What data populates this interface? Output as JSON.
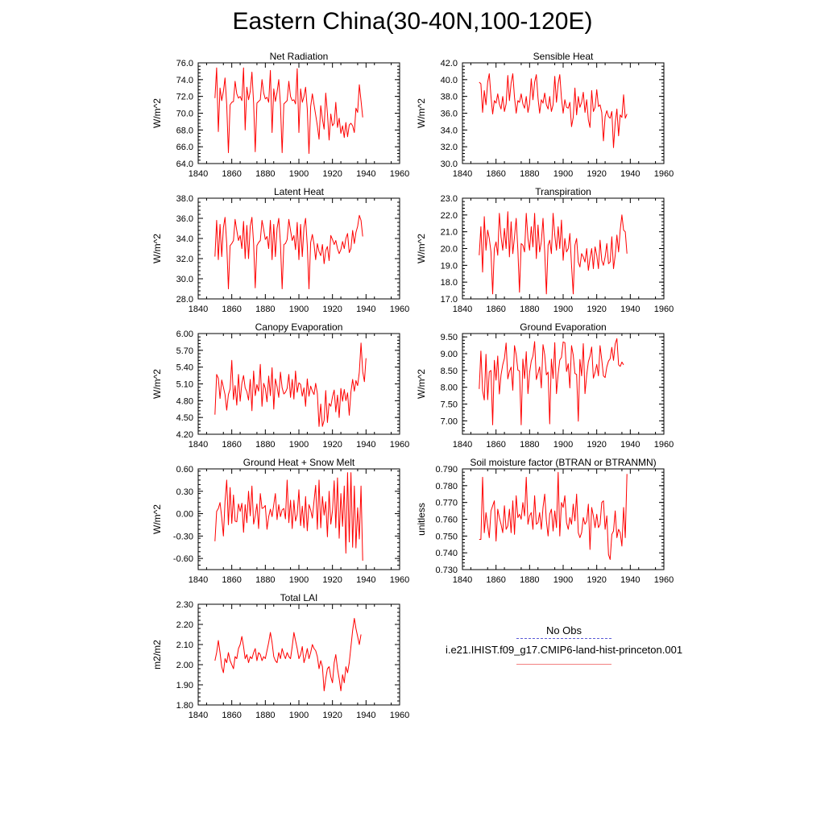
{
  "page": {
    "title": "Eastern China(30-40N,100-120E)"
  },
  "legend": {
    "obs_label": "No Obs",
    "model_label": "i.e21.IHIST.f09_g17.CMIP6-land-hist-princeton.001",
    "obs_color": "#5a5ad6",
    "model_color": "#f28080"
  },
  "colors": {
    "series": "#ff0000",
    "axes": "#000000"
  },
  "chart_data": [
    {
      "type": "line",
      "title": "Net Radiation",
      "ylabel": "W/m^2",
      "xlim": [
        1840,
        1960
      ],
      "ylim": [
        64,
        76
      ],
      "xticks": [
        "1840",
        "1860",
        "1880",
        "1900",
        "1920",
        "1940",
        "1960"
      ],
      "yticks": [
        "64.0",
        "66.0",
        "68.0",
        "70.0",
        "72.0",
        "74.0",
        "76.0"
      ],
      "x_start": 1850,
      "series": [
        {
          "values": [
            71.8,
            75.4,
            67.8,
            73.0,
            71.5,
            72.6,
            74.2,
            71.0,
            65.3,
            71.0,
            71.3,
            71.4,
            73.8,
            72.3,
            71.8,
            72.0,
            71.5,
            75.4,
            68.0,
            73.1,
            71.6,
            72.6,
            74.9,
            71.2,
            65.4,
            71.2,
            71.4,
            71.6,
            74.0,
            72.4,
            71.7,
            71.9,
            71.3,
            75.1,
            67.7,
            72.9,
            71.4,
            72.5,
            74.0,
            71.0,
            65.3,
            71.1,
            71.3,
            71.5,
            73.8,
            72.0,
            71.5,
            71.6,
            71.1,
            75.3,
            67.7,
            72.9,
            71.3,
            72.0,
            73.1,
            70.5,
            65.2,
            70.8,
            72.3,
            71.0,
            69.8,
            68.5,
            66.9,
            70.9,
            69.3,
            68.1,
            72.4,
            70.0,
            66.8,
            69.9,
            68.5,
            68.8,
            71.3,
            68.3,
            69.4,
            67.6,
            68.5,
            67.1,
            68.9,
            67.2,
            68.6,
            68.8,
            68.5,
            67.7,
            70.6,
            70.1,
            73.4,
            71.5,
            69.5
          ]
        }
      ]
    },
    {
      "type": "line",
      "title": "Sensible Heat",
      "ylabel": "W/m^2",
      "xlim": [
        1840,
        1960
      ],
      "ylim": [
        30,
        42
      ],
      "xticks": [
        "1840",
        "1860",
        "1880",
        "1900",
        "1920",
        "1940",
        "1960"
      ],
      "yticks": [
        "30.0",
        "32.0",
        "34.0",
        "36.0",
        "38.0",
        "40.0",
        "42.0"
      ],
      "x_start": 1850,
      "series": [
        {
          "values": [
            39.7,
            39.5,
            36.1,
            38.7,
            37.0,
            39.7,
            40.7,
            38.0,
            35.9,
            37.5,
            37.2,
            38.3,
            37.1,
            36.5,
            38.0,
            36.2,
            37.1,
            40.5,
            37.5,
            39.6,
            40.7,
            37.9,
            36.0,
            37.5,
            37.3,
            38.3,
            37.1,
            36.6,
            38.0,
            36.1,
            37.1,
            40.1,
            37.6,
            39.7,
            40.6,
            37.8,
            36.0,
            37.6,
            37.2,
            38.4,
            37.0,
            36.5,
            38.0,
            36.2,
            37.0,
            40.4,
            37.3,
            39.5,
            40.6,
            37.8,
            36.0,
            37.6,
            36.7,
            36.6,
            37.3,
            34.4,
            35.5,
            39.0,
            35.8,
            38.0,
            36.7,
            37.3,
            38.5,
            36.1,
            37.6,
            35.2,
            34.3,
            38.7,
            36.2,
            36.7,
            38.8,
            36.8,
            37.0,
            36.1,
            32.7,
            35.6,
            36.3,
            35.6,
            35.4,
            36.2,
            31.9,
            34.9,
            36.5,
            33.3,
            35.8,
            35.5,
            38.2,
            35.4,
            35.9
          ]
        }
      ]
    },
    {
      "type": "line",
      "title": "Latent Heat",
      "ylabel": "W/m^2",
      "xlim": [
        1840,
        1960
      ],
      "ylim": [
        28,
        38
      ],
      "xticks": [
        "1840",
        "1860",
        "1880",
        "1900",
        "1920",
        "1940",
        "1960"
      ],
      "yticks": [
        "28.0",
        "30.0",
        "32.0",
        "34.0",
        "36.0",
        "38.0"
      ],
      "x_start": 1850,
      "series": [
        {
          "values": [
            32.2,
            35.8,
            31.9,
            35.4,
            32.2,
            35.1,
            36.1,
            33.5,
            29.0,
            33.3,
            33.5,
            33.8,
            35.9,
            34.8,
            33.8,
            34.3,
            33.0,
            35.7,
            32.0,
            35.3,
            32.0,
            35.2,
            36.1,
            33.5,
            29.1,
            33.3,
            33.6,
            33.8,
            35.8,
            34.9,
            33.9,
            34.2,
            33.0,
            35.8,
            31.9,
            35.4,
            32.2,
            35.0,
            36.0,
            33.5,
            29.0,
            33.4,
            33.5,
            33.9,
            35.9,
            34.8,
            33.8,
            34.3,
            32.9,
            35.6,
            31.9,
            35.4,
            32.2,
            35.1,
            36.0,
            33.3,
            29.0,
            33.6,
            34.4,
            33.4,
            31.9,
            33.5,
            32.7,
            32.3,
            33.4,
            31.5,
            32.8,
            33.2,
            31.8,
            34.3,
            33.9,
            33.4,
            33.8,
            33.0,
            32.5,
            32.9,
            33.7,
            33.0,
            34.0,
            34.5,
            32.6,
            33.0,
            34.8,
            33.5,
            34.6,
            35.2,
            36.3,
            35.8,
            34.2
          ]
        }
      ]
    },
    {
      "type": "line",
      "title": "Transpiration",
      "ylabel": "W/m^2",
      "xlim": [
        1840,
        1960
      ],
      "ylim": [
        17,
        23
      ],
      "xticks": [
        "1840",
        "1860",
        "1880",
        "1900",
        "1920",
        "1940",
        "1960"
      ],
      "yticks": [
        "17.0",
        "18.0",
        "19.0",
        "20.0",
        "21.0",
        "22.0",
        "23.0"
      ],
      "x_start": 1850,
      "series": [
        {
          "values": [
            19.6,
            21.3,
            18.6,
            21.9,
            19.9,
            21.1,
            20.6,
            19.8,
            17.3,
            20.0,
            20.4,
            19.6,
            22.1,
            20.7,
            19.9,
            21.2,
            20.0,
            22.2,
            19.5,
            21.6,
            19.7,
            20.7,
            21.8,
            19.9,
            17.4,
            20.3,
            20.2,
            19.8,
            22.1,
            20.6,
            19.9,
            21.3,
            20.1,
            22.1,
            19.4,
            21.4,
            19.8,
            20.4,
            21.8,
            19.8,
            17.3,
            20.2,
            20.5,
            19.7,
            22.1,
            20.8,
            19.9,
            21.3,
            20.0,
            21.7,
            19.3,
            20.6,
            19.8,
            20.0,
            20.9,
            19.0,
            17.3,
            20.2,
            20.6,
            19.2,
            18.9,
            19.7,
            19.5,
            19.2,
            20.0,
            18.7,
            19.4,
            20.0,
            18.8,
            20.1,
            19.6,
            18.8,
            20.5,
            19.3,
            19.0,
            19.5,
            20.3,
            19.1,
            19.2,
            20.7,
            18.8,
            19.6,
            20.8,
            19.8,
            21.1,
            22.0,
            21.1,
            21.0,
            19.7
          ]
        }
      ]
    },
    {
      "type": "line",
      "title": "Canopy Evaporation",
      "ylabel": "W/m^2",
      "xlim": [
        1840,
        1960
      ],
      "ylim": [
        4.2,
        6.0
      ],
      "xticks": [
        "1840",
        "1860",
        "1880",
        "1900",
        "1920",
        "1940",
        "1960"
      ],
      "yticks": [
        "4.20",
        "4.50",
        "4.80",
        "5.10",
        "5.40",
        "5.70",
        "6.00"
      ],
      "x_start": 1850,
      "series": [
        {
          "values": [
            4.55,
            5.27,
            5.2,
            4.84,
            5.17,
            5.04,
            4.91,
            4.63,
            4.91,
            5.01,
            5.52,
            4.82,
            5.07,
            4.72,
            5.27,
            4.79,
            5.11,
            5.25,
            5.03,
            4.96,
            4.81,
            5.18,
            4.62,
            5.33,
            4.89,
            5.09,
            4.97,
            5.45,
            4.7,
            5.11,
            5.02,
            4.78,
            5.24,
            4.89,
            5.39,
            4.65,
            5.19,
            5.05,
            4.86,
            5.31,
            5.03,
            4.92,
            4.95,
            5.02,
            5.27,
            4.86,
            5.18,
            4.83,
            5.33,
            4.95,
            5.12,
            5.09,
            4.88,
            5.03,
            4.7,
            5.19,
            4.88,
            5.06,
            4.97,
            4.91,
            5.11,
            4.93,
            4.34,
            4.74,
            4.34,
            4.45,
            4.98,
            4.41,
            4.75,
            4.7,
            4.87,
            4.99,
            4.6,
            4.9,
            4.5,
            5.02,
            4.79,
            5.0,
            4.8,
            4.94,
            4.54,
            4.96,
            5.18,
            4.97,
            5.16,
            5.07,
            5.31,
            5.83,
            5.32,
            5.14,
            5.56
          ]
        }
      ]
    },
    {
      "type": "line",
      "title": "Ground Evaporation",
      "ylabel": "W/m^2",
      "xlim": [
        1840,
        1960
      ],
      "ylim": [
        6.6,
        9.6
      ],
      "xticks": [
        "1840",
        "1860",
        "1880",
        "1900",
        "1920",
        "1940",
        "1960"
      ],
      "yticks": [
        "7.00",
        "7.50",
        "8.00",
        "8.50",
        "9.00",
        "9.50"
      ],
      "x_start": 1850,
      "series": [
        {
          "values": [
            7.95,
            9.08,
            7.9,
            7.62,
            8.98,
            7.63,
            8.46,
            8.5,
            6.88,
            8.8,
            8.21,
            8.93,
            7.8,
            8.37,
            8.67,
            8.86,
            9.32,
            8.25,
            8.47,
            8.6,
            7.91,
            9.24,
            8.97,
            8.51,
            8.49,
            6.88,
            8.84,
            8.26,
            9.06,
            7.81,
            8.43,
            8.78,
            8.93,
            9.36,
            8.23,
            8.42,
            8.61,
            7.98,
            9.27,
            8.97,
            8.37,
            8.45,
            6.91,
            8.84,
            8.26,
            9.33,
            7.81,
            8.4,
            8.81,
            8.89,
            9.35,
            9.33,
            8.47,
            8.7,
            7.98,
            9.24,
            8.96,
            8.41,
            8.38,
            6.99,
            8.83,
            8.34,
            9.3,
            7.81,
            8.36,
            8.76,
            8.92,
            9.2,
            8.27,
            8.44,
            8.68,
            8.34,
            9.24,
            8.82,
            8.34,
            8.29,
            8.61,
            8.78,
            8.85,
            9.19,
            8.8,
            9.29,
            9.45,
            8.67,
            8.62,
            8.75,
            8.67
          ]
        }
      ]
    },
    {
      "type": "line",
      "title": "Ground Heat + Snow Melt",
      "ylabel": "W/m^2",
      "xlim": [
        1840,
        1960
      ],
      "ylim": [
        -0.75,
        0.6
      ],
      "xticks": [
        "1840",
        "1860",
        "1880",
        "1900",
        "1920",
        "1940",
        "1960"
      ],
      "yticks": [
        "-0.60",
        "-0.30",
        "0.00",
        "0.30",
        "0.60"
      ],
      "x_start": 1850,
      "series": [
        {
          "values": [
            -0.37,
            0.03,
            0.07,
            0.15,
            -0.05,
            -0.3,
            0.16,
            0.45,
            -0.15,
            0.35,
            -0.13,
            0.25,
            -0.1,
            -0.11,
            0.13,
            0.03,
            0.14,
            -0.25,
            0.12,
            -0.12,
            0.3,
            -0.03,
            0.37,
            -0.14,
            -0.03,
            0.13,
            -0.2,
            0.27,
            0.07,
            0.08,
            0.11,
            -0.21,
            -0.04,
            0.06,
            -0.04,
            0.12,
            0.27,
            -0.08,
            0.12,
            -0.04,
            0.05,
            0.07,
            -0.07,
            0.45,
            -0.12,
            0.18,
            -0.2,
            0.18,
            -0.1,
            -0.01,
            0.32,
            -0.16,
            0.1,
            -0.19,
            0.23,
            -0.23,
            0.12,
            0.05,
            -0.06,
            0.17,
            0.38,
            -0.21,
            0.45,
            -0.19,
            0.23,
            -0.02,
            0.16,
            -0.31,
            0.3,
            -0.14,
            0.04,
            0.44,
            -0.19,
            0.48,
            -0.33,
            0.27,
            -0.17,
            0.37,
            -0.53,
            0.55,
            -0.38,
            0.55,
            -0.45,
            0.37,
            -0.46,
            0.08,
            -0.34,
            0.37,
            -0.63
          ]
        }
      ]
    },
    {
      "type": "line",
      "title": "Soil moisture factor (BTRAN or BTRANMN)",
      "ylabel": "unitless",
      "xlim": [
        1840,
        1960
      ],
      "ylim": [
        0.73,
        0.79
      ],
      "xticks": [
        "1840",
        "1860",
        "1880",
        "1900",
        "1920",
        "1940",
        "1960"
      ],
      "yticks": [
        "0.730",
        "0.740",
        "0.750",
        "0.760",
        "0.770",
        "0.780",
        "0.790"
      ],
      "x_start": 1850,
      "series": [
        {
          "values": [
            0.748,
            0.748,
            0.785,
            0.752,
            0.764,
            0.756,
            0.749,
            0.765,
            0.768,
            0.771,
            0.747,
            0.766,
            0.761,
            0.757,
            0.752,
            0.768,
            0.754,
            0.756,
            0.766,
            0.752,
            0.771,
            0.751,
            0.774,
            0.761,
            0.763,
            0.76,
            0.77,
            0.762,
            0.785,
            0.757,
            0.762,
            0.764,
            0.754,
            0.774,
            0.757,
            0.758,
            0.764,
            0.754,
            0.767,
            0.775,
            0.759,
            0.75,
            0.763,
            0.766,
            0.753,
            0.765,
            0.755,
            0.788,
            0.75,
            0.77,
            0.767,
            0.774,
            0.758,
            0.754,
            0.761,
            0.757,
            0.769,
            0.759,
            0.775,
            0.752,
            0.749,
            0.752,
            0.761,
            0.757,
            0.759,
            0.769,
            0.742,
            0.767,
            0.762,
            0.755,
            0.763,
            0.755,
            0.757,
            0.77,
            0.771,
            0.754,
            0.762,
            0.739,
            0.736,
            0.751,
            0.753,
            0.765,
            0.749,
            0.754,
            0.752,
            0.744,
            0.767,
            0.749,
            0.787
          ]
        }
      ]
    },
    {
      "type": "line",
      "title": "Total LAI",
      "ylabel": "m2/m2",
      "xlim": [
        1840,
        1960
      ],
      "ylim": [
        1.8,
        2.3
      ],
      "xticks": [
        "1840",
        "1860",
        "1880",
        "1900",
        "1920",
        "1940",
        "1960"
      ],
      "yticks": [
        "1.80",
        "1.90",
        "2.00",
        "2.10",
        "2.20",
        "2.30"
      ],
      "x_start": 1850,
      "series": [
        {
          "values": [
            2.02,
            2.06,
            2.12,
            2.06,
            1.99,
            1.96,
            2.03,
            2.01,
            2.06,
            2.02,
            2.0,
            1.98,
            2.04,
            2.03,
            2.08,
            2.1,
            2.14,
            2.09,
            2.03,
            2.05,
            2.01,
            2.04,
            2.03,
            2.06,
            2.08,
            2.02,
            2.06,
            2.05,
            2.02,
            2.04,
            2.03,
            2.07,
            2.11,
            2.16,
            2.11,
            2.04,
            2.02,
            2.01,
            2.06,
            2.03,
            2.08,
            2.05,
            2.03,
            2.06,
            2.04,
            2.03,
            2.09,
            2.16,
            2.12,
            2.08,
            2.03,
            2.05,
            2.09,
            2.01,
            2.04,
            2.08,
            2.03,
            2.06,
            2.1,
            2.08,
            2.07,
            2.04,
            1.98,
            2.02,
            1.99,
            1.87,
            1.93,
            1.98,
            1.99,
            1.94,
            1.91,
            2.01,
            2.05,
            1.98,
            1.93,
            1.87,
            1.95,
            1.91,
            1.99,
            1.96,
            2.01,
            2.09,
            2.17,
            2.23,
            2.18,
            2.14,
            2.1,
            2.15
          ]
        }
      ]
    }
  ]
}
